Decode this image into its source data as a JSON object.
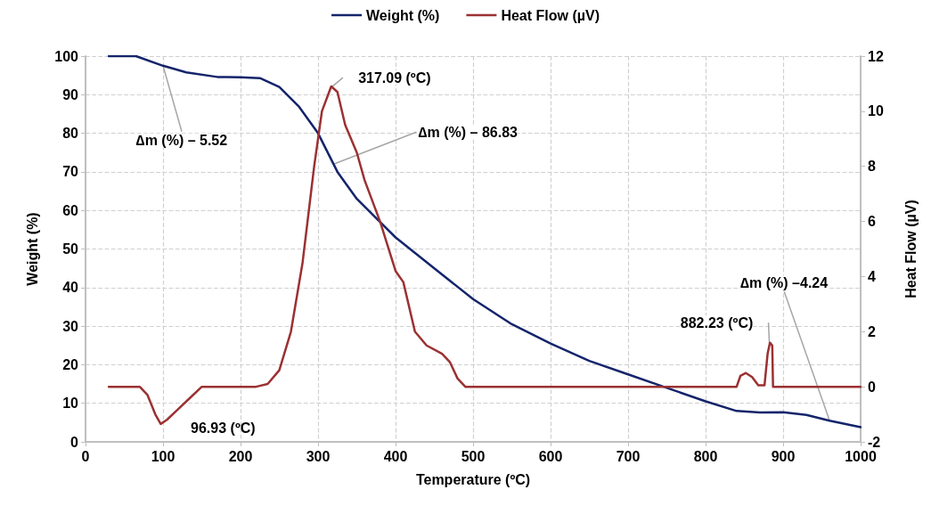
{
  "chart_data": {
    "type": "line",
    "xlabel": "Temperature (ºC)",
    "ylabel": "Weight (%)",
    "y2label": "Heat Flow (µV)",
    "xlim": [
      0,
      1000
    ],
    "xticks": [
      0,
      100,
      200,
      300,
      400,
      500,
      600,
      700,
      800,
      900,
      1000
    ],
    "ylim": [
      0,
      100
    ],
    "yticks": [
      0,
      10,
      20,
      30,
      40,
      50,
      60,
      70,
      80,
      90,
      100
    ],
    "y2lim": [
      -2,
      12
    ],
    "y2ticks": [
      -2,
      0,
      2,
      4,
      6,
      8,
      10,
      12
    ],
    "grid": true,
    "legend": "top",
    "marker": "none",
    "line_style": "solid",
    "series": [
      {
        "name": "Weight (%)",
        "color": "#14246b",
        "x": [
          30,
          65,
          100,
          130,
          170,
          200,
          225,
          250,
          275,
          300,
          325,
          350,
          375,
          400,
          450,
          500,
          550,
          600,
          650,
          700,
          750,
          800,
          840,
          870,
          900,
          930,
          960,
          1000
        ],
        "values": [
          100,
          100,
          97.5,
          95.8,
          94.6,
          94.5,
          94.3,
          92,
          87,
          80,
          70,
          63,
          58,
          53,
          45,
          37,
          30.5,
          25.5,
          21,
          17.5,
          14,
          10.5,
          8,
          7.6,
          7.7,
          7,
          5.5,
          3.8
        ]
      },
      {
        "name": "Heat Flow (µV)",
        "color": "#9b3132",
        "axis": "y2",
        "x": [
          30,
          70,
          80,
          90,
          97,
          105,
          120,
          135,
          150,
          220,
          235,
          250,
          265,
          280,
          295,
          305,
          317,
          325,
          335,
          350,
          360,
          380,
          400,
          410,
          425,
          440,
          460,
          470,
          480,
          490,
          840,
          845,
          852,
          860,
          868,
          876,
          880,
          883,
          886,
          887,
          1000
        ],
        "values": [
          0,
          0,
          -0.3,
          -1,
          -1.35,
          -1.2,
          -0.8,
          -0.4,
          0,
          0,
          0.1,
          0.6,
          2,
          4.5,
          8,
          10,
          10.9,
          10.7,
          9.5,
          8.5,
          7.5,
          6,
          4.2,
          3.8,
          2,
          1.5,
          1.2,
          0.9,
          0.3,
          0,
          0,
          0.4,
          0.5,
          0.35,
          0.05,
          0.05,
          1.2,
          1.6,
          1.5,
          0,
          0
        ]
      }
    ],
    "annotations": [
      {
        "text": "∆m (%) – 5.52",
        "x": 100,
        "y": 97.5
      },
      {
        "text": "317.09 (ºC)",
        "x": 317.09,
        "y": 91.9
      },
      {
        "text": "∆m (%) – 86.83",
        "x": 320,
        "y": 72
      },
      {
        "text": "96.93 (ºC)",
        "x": 96.93,
        "y": 4.6
      },
      {
        "text": "882.23 (ºC)",
        "x": 882.23,
        "y": 25.6
      },
      {
        "text": "∆m (%) –4.24",
        "x": 960,
        "y": 5.5
      }
    ]
  }
}
